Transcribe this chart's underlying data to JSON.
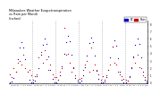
{
  "title": "Milwaukee Weather Evapotranspiration\nvs Rain per Month\n(Inches)",
  "title_fontsize": 2.5,
  "legend_et": "ET",
  "legend_rain": "Rain",
  "et_color": "#0000cc",
  "rain_color": "#cc0000",
  "background_color": "#ffffff",
  "ylim": [
    0.0,
    8.5
  ],
  "yticks": [
    0,
    1,
    2,
    3,
    4,
    5,
    6,
    7,
    8
  ],
  "months_per_year": 12,
  "num_years": 6,
  "et_data": [
    0.1,
    0.2,
    0.7,
    1.5,
    3.2,
    4.8,
    5.5,
    4.8,
    3.2,
    1.5,
    0.5,
    0.1,
    0.1,
    0.3,
    0.9,
    2.0,
    3.8,
    5.2,
    6.0,
    5.3,
    3.6,
    1.8,
    0.6,
    0.1,
    0.1,
    0.4,
    1.1,
    2.3,
    4.0,
    5.6,
    6.4,
    5.7,
    3.9,
    2.0,
    0.7,
    0.2,
    0.1,
    0.3,
    1.0,
    2.1,
    3.7,
    5.4,
    6.2,
    5.5,
    3.7,
    1.7,
    0.6,
    0.1,
    0.1,
    0.2,
    0.8,
    1.8,
    3.5,
    5.0,
    5.8,
    5.1,
    3.4,
    1.5,
    0.5,
    0.1,
    0.1,
    0.3,
    0.9,
    2.0,
    3.6,
    5.2,
    6.0,
    5.3,
    3.5,
    1.6,
    0.5,
    0.1
  ],
  "rain_data": [
    1.2,
    0.8,
    2.0,
    1.5,
    2.8,
    3.0,
    2.5,
    3.8,
    2.0,
    1.5,
    1.8,
    1.0,
    0.5,
    0.9,
    1.2,
    3.5,
    4.2,
    2.8,
    4.5,
    3.2,
    1.8,
    2.5,
    1.2,
    0.8,
    0.8,
    0.4,
    1.5,
    2.0,
    7.5,
    3.8,
    4.0,
    2.8,
    1.5,
    2.2,
    1.0,
    0.5,
    0.6,
    0.7,
    1.8,
    2.5,
    3.0,
    1.5,
    4.8,
    1.8,
    2.5,
    1.8,
    1.2,
    0.4,
    0.9,
    0.5,
    1.0,
    1.8,
    2.5,
    5.0,
    2.8,
    2.5,
    1.5,
    1.2,
    0.9,
    0.6,
    0.5,
    0.3,
    0.8,
    2.2,
    3.5,
    2.8,
    3.8,
    2.2,
    2.0,
    1.0,
    0.8,
    0.3
  ],
  "month_labels": [
    "J",
    "F",
    "M",
    "A",
    "M",
    "J",
    "J",
    "A",
    "S",
    "O",
    "N",
    "D",
    "J",
    "F",
    "M",
    "A",
    "M",
    "J",
    "J",
    "A",
    "S",
    "O",
    "N",
    "D",
    "J",
    "F",
    "M",
    "A",
    "M",
    "J",
    "J",
    "A",
    "S",
    "O",
    "N",
    "D",
    "J",
    "F",
    "M",
    "A",
    "M",
    "J",
    "J",
    "A",
    "S",
    "O",
    "N",
    "D",
    "J",
    "F",
    "M",
    "A",
    "M",
    "J",
    "J",
    "A",
    "S",
    "O",
    "N",
    "D",
    "J",
    "F",
    "M",
    "A",
    "M",
    "J",
    "J",
    "A",
    "S",
    "O",
    "N",
    "D"
  ]
}
